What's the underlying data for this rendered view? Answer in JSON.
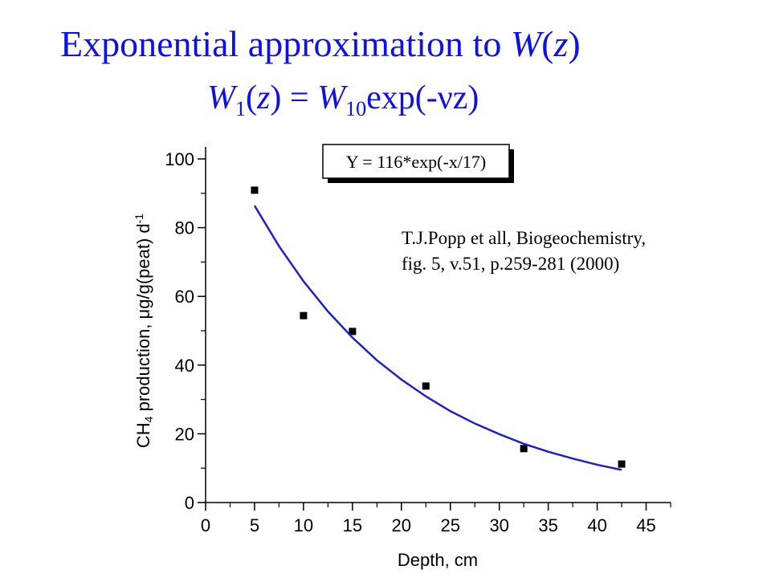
{
  "title_parts": [
    {
      "text": "Exponential approximation to "
    },
    {
      "text": "W",
      "style": "italic"
    },
    {
      "text": "("
    },
    {
      "text": "z",
      "style": "italic"
    },
    {
      "text": ")"
    }
  ],
  "formula_parts": [
    {
      "text": "W",
      "style": "italic"
    },
    {
      "text": "1",
      "style": "sub"
    },
    {
      "text": "("
    },
    {
      "text": "z",
      "style": "italic"
    },
    {
      "text": ") = "
    },
    {
      "text": "W",
      "style": "italic"
    },
    {
      "text": "10",
      "style": "sub"
    },
    {
      "text": "exp(-νz)"
    }
  ],
  "chart_data": {
    "type": "scatter",
    "x_label": "Depth, cm",
    "y_label_parts": [
      {
        "text": "CH"
      },
      {
        "text": "4",
        "style": "sub"
      },
      {
        "text": " production, "
      },
      {
        "text": "μ"
      },
      {
        "text": "g/g(peat) d"
      },
      {
        "text": "-1",
        "style": "sup"
      }
    ],
    "equation": "Y = 116*exp(-x/17)",
    "annotation": [
      "T.J.Popp et all, Biogeochemistry,",
      "fig. 5, v.51, p.259-281 (2000)"
    ],
    "xlim": [
      0,
      47.5
    ],
    "ylim": [
      0,
      103.5
    ],
    "xticks": [
      0,
      5,
      10,
      15,
      20,
      25,
      30,
      35,
      40,
      45
    ],
    "yticks": [
      0,
      20,
      40,
      60,
      80,
      100
    ],
    "xminorticks": [
      2.5,
      7.5,
      12.5,
      17.5,
      22.5,
      27.5,
      32.5,
      37.5,
      42.5,
      47.5
    ],
    "yminorticks": [
      10,
      30,
      50,
      70,
      90
    ],
    "series": [
      {
        "type": "scatter",
        "color": "#000000",
        "x": [
          5,
          10,
          15,
          22.5,
          32.5,
          42.5
        ],
        "values": [
          90.9,
          54.4,
          49.8,
          33.9,
          15.7,
          11.2
        ]
      },
      {
        "type": "line",
        "color": "#1f1fc8",
        "x": [
          5,
          7.5,
          10,
          12.5,
          15,
          17.5,
          20,
          22.5,
          25,
          27.5,
          30,
          32.5,
          35,
          37.5,
          40,
          42.5
        ],
        "values": [
          86.4,
          74.6,
          64.4,
          55.6,
          48.0,
          41.4,
          35.8,
          30.9,
          26.6,
          23.0,
          19.9,
          17.1,
          14.8,
          12.8,
          11.0,
          9.5
        ]
      }
    ]
  }
}
